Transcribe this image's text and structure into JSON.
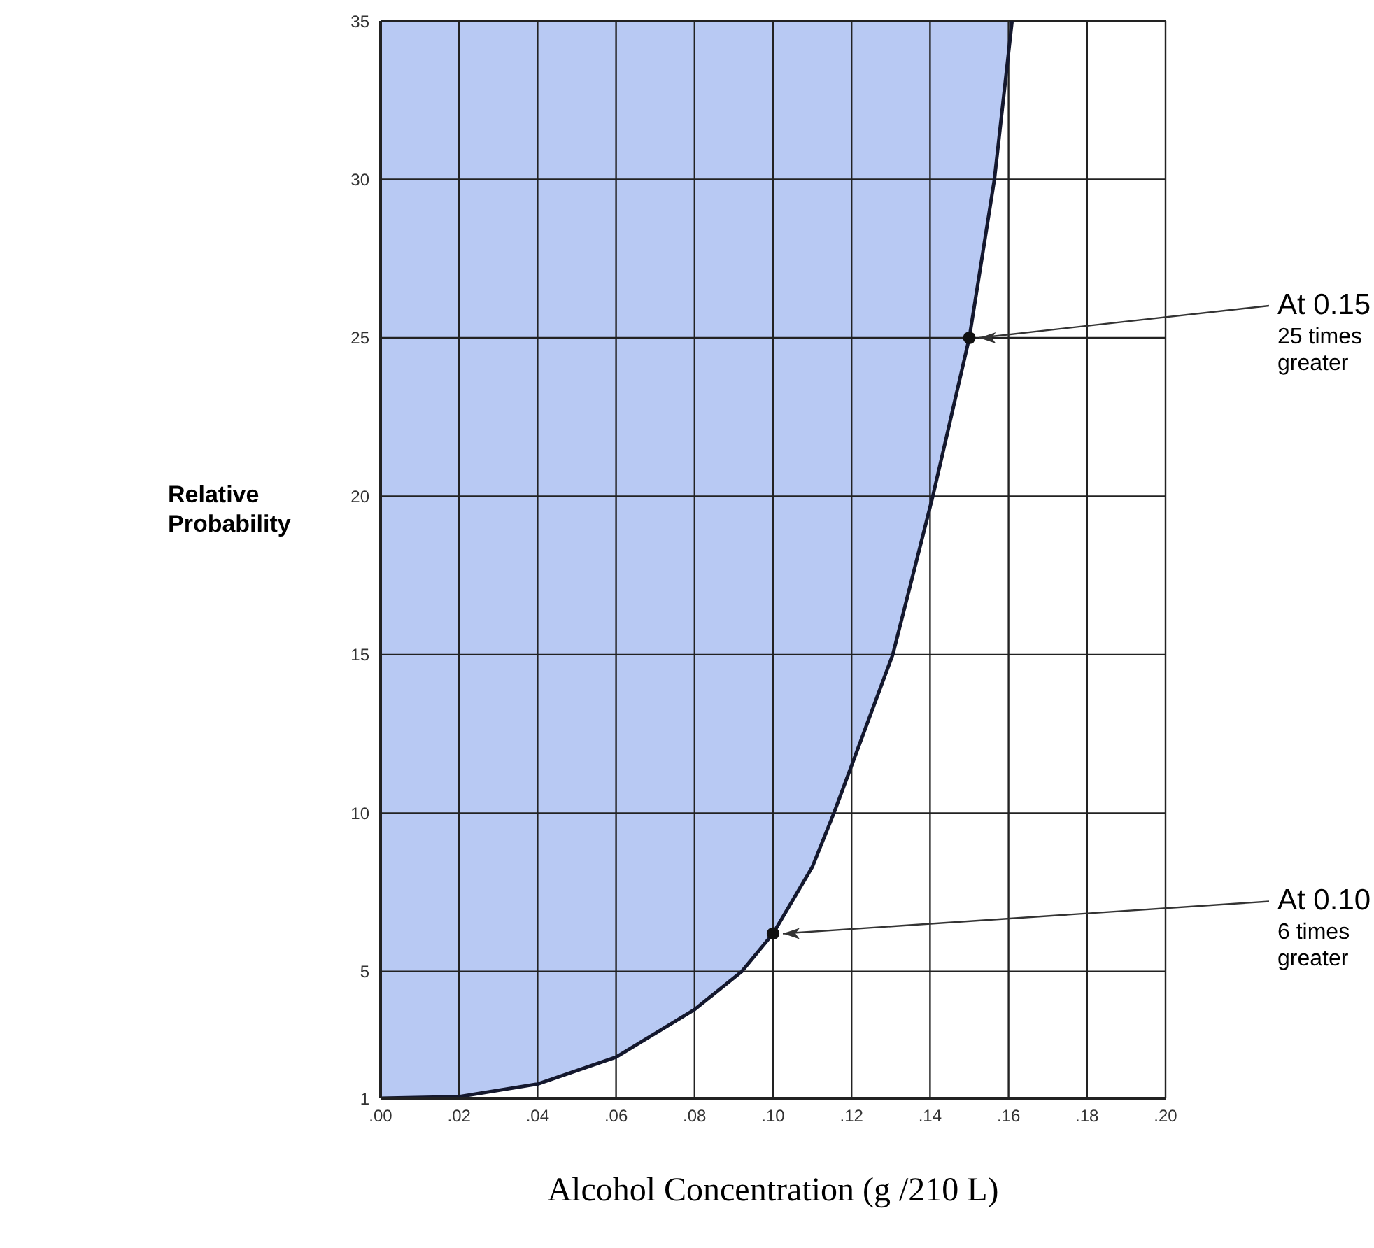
{
  "chart_data": {
    "type": "line",
    "xlabel": "Alcohol Concentration (g /210 L)",
    "ylabel": "Relative Probability",
    "xlim": [
      0,
      0.2
    ],
    "xticks": [
      {
        "value": 0,
        "label": ".00"
      },
      {
        "value": 0.02,
        "label": ".02"
      },
      {
        "value": 0.04,
        "label": ".04"
      },
      {
        "value": 0.06,
        "label": ".06"
      },
      {
        "value": 0.08,
        "label": ".08"
      },
      {
        "value": 0.1,
        "label": ".10"
      },
      {
        "value": 0.12,
        "label": ".12"
      },
      {
        "value": 0.14,
        "label": ".14"
      },
      {
        "value": 0.16,
        "label": ".16"
      },
      {
        "value": 0.18,
        "label": ".18"
      },
      {
        "value": 0.2,
        "label": ".20"
      }
    ],
    "ylim": [
      1,
      35
    ],
    "yticks": [
      1,
      5,
      10,
      15,
      20,
      25,
      30,
      35
    ],
    "grid": true,
    "series": [
      {
        "color": "#14182e",
        "marker": "none",
        "x": [
          0,
          0.02,
          0.04,
          0.06,
          0.08,
          0.092,
          0.1,
          0.11,
          0.1155,
          0.1305,
          0.1407,
          0.15,
          0.1564,
          0.1609
        ],
        "values": [
          1,
          1.05,
          1.45,
          2.3,
          3.8,
          5,
          6.2,
          8.3,
          10,
          15,
          20,
          25,
          30,
          35
        ]
      },
      {
        "type": "scatter",
        "color": "#111111",
        "marker": "circle",
        "x": [
          0.1,
          0.15
        ],
        "values": [
          6.2,
          25
        ]
      }
    ],
    "annotations": [
      {
        "text": "At 0.15\n25 times\ngreater",
        "x": 0.15,
        "y": 25
      },
      {
        "text": "At 0.10\n6 times\ngreater",
        "x": 0.1,
        "y": 6.2
      }
    ]
  }
}
